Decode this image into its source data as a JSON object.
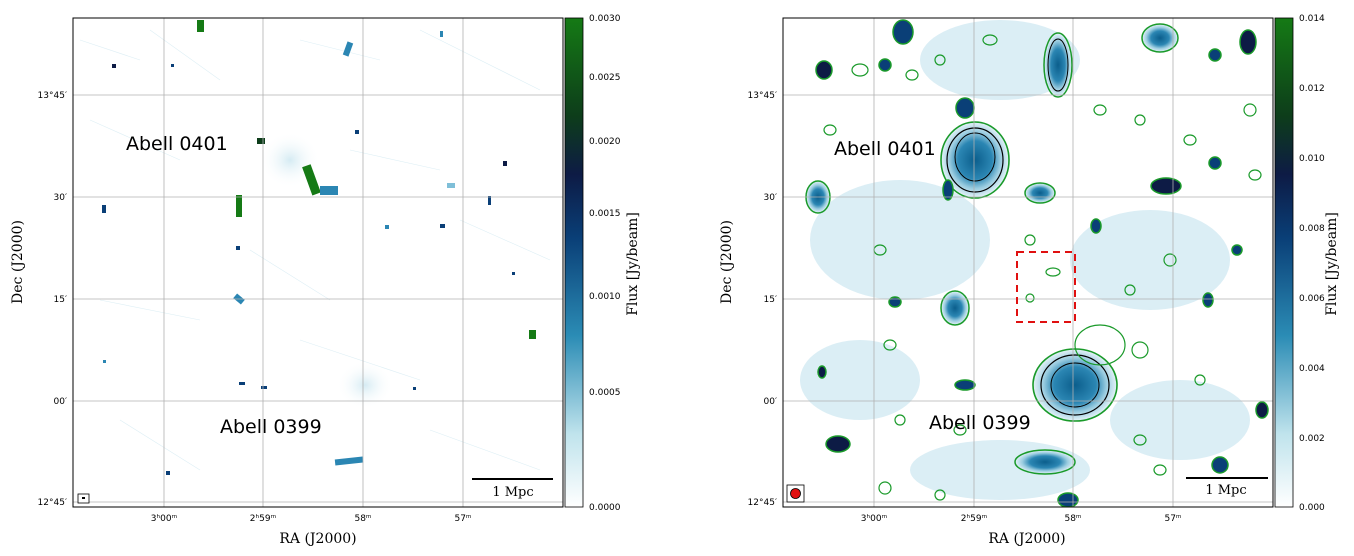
{
  "chart_data": [
    {
      "type": "heatmap",
      "title": "",
      "xlabel": "RA (J2000)",
      "ylabel": "Dec (J2000)",
      "x_ticks": [
        "3ʰ00ᵐ",
        "2ʰ59ᵐ",
        "58ᵐ",
        "57ᵐ"
      ],
      "y_ticks": [
        "13°45′",
        "30′",
        "15′",
        "00′",
        "12°45′"
      ],
      "colorbar_label": "Flux [Jy/beam]",
      "colorbar_ticks": [
        "0.0030",
        "0.0025",
        "0.0020",
        "0.0015",
        "0.0010",
        "0.0005",
        "0.0000"
      ],
      "colorbar_range": [
        0.0,
        0.003
      ],
      "colormap": [
        "#ffffff",
        "#bfe3ec",
        "#2b8cb5",
        "#0a3f77",
        "#0d1b45",
        "#0d3d1a",
        "#157a15"
      ],
      "annotations": [
        "Abell 0401",
        "Abell 0399"
      ],
      "scalebar_label": "1 Mpc",
      "grid": true
    },
    {
      "type": "heatmap",
      "title": "",
      "xlabel": "RA (J2000)",
      "ylabel": "Dec (J2000)",
      "x_ticks": [
        "3ʰ00ᵐ",
        "2ʰ59ᵐ",
        "58ᵐ",
        "57ᵐ"
      ],
      "y_ticks": [
        "13°45′",
        "30′",
        "15′",
        "00′",
        "12°45′"
      ],
      "colorbar_label": "Flux [Jy/beam]",
      "colorbar_ticks": [
        "0.014",
        "0.012",
        "0.010",
        "0.008",
        "0.006",
        "0.004",
        "0.002",
        "0.000"
      ],
      "colorbar_range": [
        0.0,
        0.014
      ],
      "colormap": [
        "#ffffff",
        "#bfe3ec",
        "#2b8cb5",
        "#0a3f77",
        "#0d1b45",
        "#0d3d1a",
        "#157a15"
      ],
      "annotations": [
        "Abell 0401",
        "Abell 0399"
      ],
      "scalebar_label": "1 Mpc",
      "contours": true,
      "grid": true
    }
  ]
}
